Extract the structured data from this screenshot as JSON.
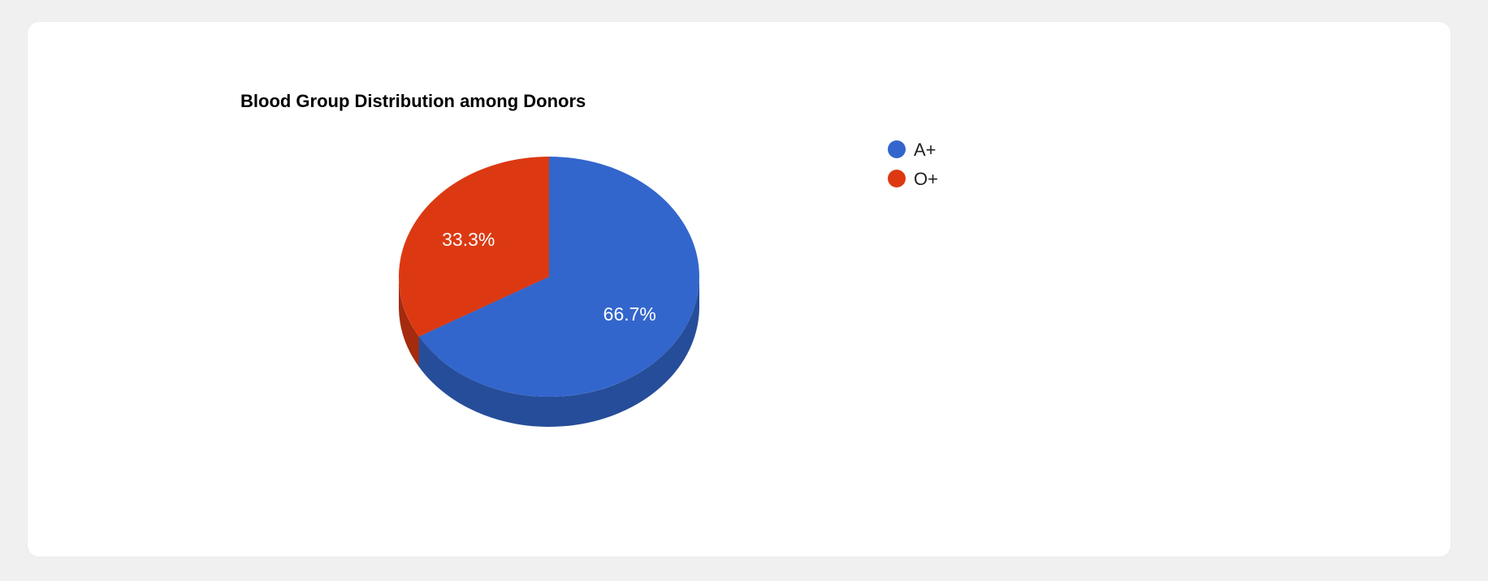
{
  "chart_data": {
    "type": "pie",
    "title": "Blood Group Distribution among Donors",
    "is3D": true,
    "legend_position": "right",
    "slices": [
      {
        "label": "A+",
        "value": 66.7,
        "display": "66.7%",
        "color": "#3366cc",
        "side_color": "#264d99"
      },
      {
        "label": "O+",
        "value": 33.3,
        "display": "33.3%",
        "color": "#dc3912",
        "side_color": "#a52b0e"
      }
    ]
  }
}
